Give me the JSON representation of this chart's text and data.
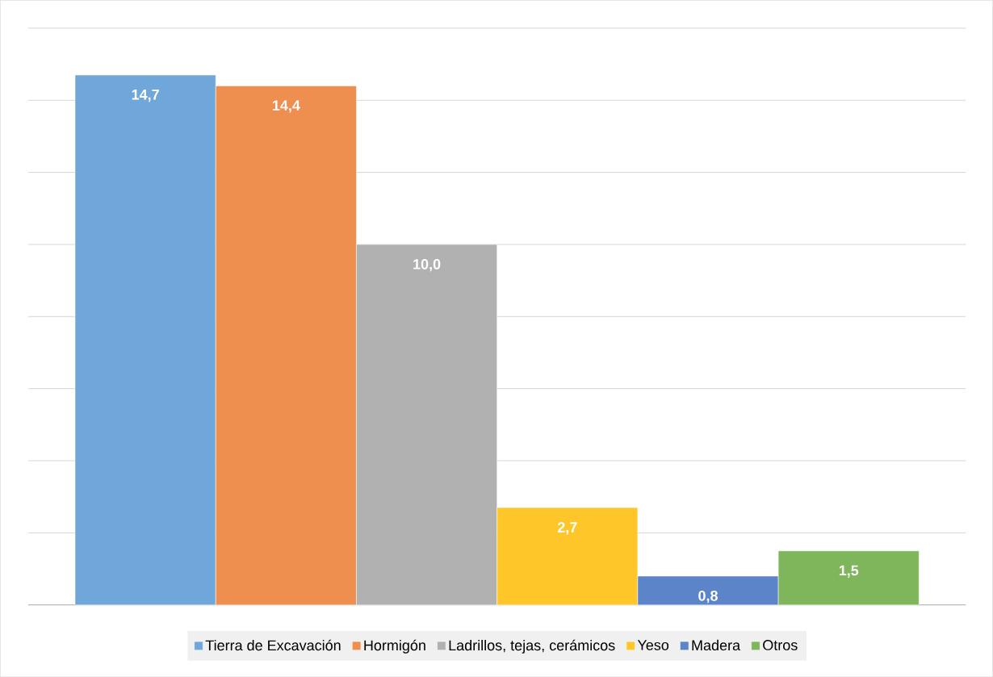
{
  "chart_data": {
    "type": "bar",
    "categories": [
      null
    ],
    "ylim": [
      0,
      16
    ],
    "yticks": [
      {
        "value": 0,
        "label": null
      },
      {
        "value": 2,
        "label": null
      },
      {
        "value": 4,
        "label": null
      },
      {
        "value": 6,
        "label": null
      },
      {
        "value": 8,
        "label": null
      },
      {
        "value": 10,
        "label": null
      },
      {
        "value": 12,
        "label": null
      },
      {
        "value": 14,
        "label": null
      },
      {
        "value": 16,
        "label": null
      }
    ],
    "grid": "y",
    "legend": "bottom",
    "series": [
      {
        "name": "Tierra de Excavación",
        "color": "#70a7da",
        "values": [
          14.7
        ],
        "value_labels": [
          "14,7"
        ]
      },
      {
        "name": "Hormigón",
        "color": "#ee8f4f",
        "values": [
          14.4
        ],
        "value_labels": [
          "14,4"
        ]
      },
      {
        "name": "Ladrillos, tejas, cerámicos",
        "color": "#b1b1b1",
        "values": [
          10.0
        ],
        "value_labels": [
          "10,0"
        ]
      },
      {
        "name": "Yeso",
        "color": "#ffc62a",
        "values": [
          2.7
        ],
        "value_labels": [
          "2,7"
        ]
      },
      {
        "name": "Madera",
        "color": "#5b84c9",
        "values": [
          0.8
        ],
        "value_labels": [
          "0,8"
        ]
      },
      {
        "name": "Otros",
        "color": "#7fb65b",
        "values": [
          1.5
        ],
        "value_labels": [
          "1,5"
        ]
      }
    ]
  }
}
